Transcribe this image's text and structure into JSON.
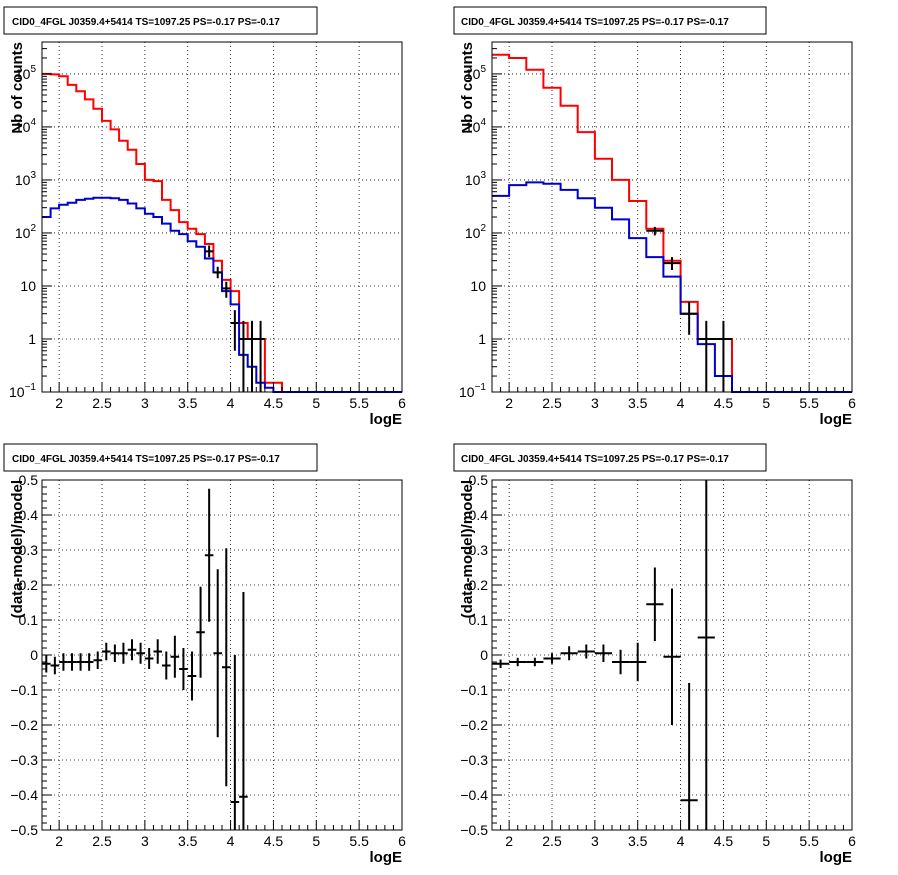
{
  "chart_data": [
    {
      "type": "line",
      "title": "CID0_4FGL J0359.4+5414 TS=1097.25 PS=-0.17 PS=-0.17",
      "xlabel": "logE",
      "ylabel": "Nb of counts",
      "yscale": "log",
      "xlim": [
        1.8,
        6.0
      ],
      "ylim": [
        0.1,
        400000
      ],
      "grid": true,
      "x_tick_labels": [
        "2",
        "2.5",
        "3",
        "3.5",
        "4",
        "4.5",
        "5",
        "5.5",
        "6"
      ],
      "y_tick_labels": [
        {
          "v": 0.1,
          "base": "10",
          "exp": "−1"
        },
        {
          "v": 1,
          "base": "1",
          "exp": ""
        },
        {
          "v": 10,
          "base": "10",
          "exp": ""
        },
        {
          "v": 100,
          "base": "10",
          "exp": "2"
        },
        {
          "v": 1000,
          "base": "10",
          "exp": "3"
        },
        {
          "v": 10000,
          "base": "10",
          "exp": "4"
        },
        {
          "v": 100000,
          "base": "10",
          "exp": "5"
        }
      ],
      "bin_edges": [
        1.8,
        1.9,
        2.0,
        2.1,
        2.2,
        2.3,
        2.4,
        2.5,
        2.6,
        2.7,
        2.8,
        2.9,
        3.0,
        3.1,
        3.2,
        3.3,
        3.4,
        3.5,
        3.6,
        3.7,
        3.8,
        3.9,
        4.0,
        4.1,
        4.2,
        4.3,
        4.4,
        4.5,
        4.6,
        4.7,
        4.8,
        4.9,
        5.0,
        5.1,
        5.2,
        5.3,
        5.4,
        5.5,
        5.6,
        5.7,
        5.8,
        5.9,
        6.0
      ],
      "series": [
        {
          "color": "#ff0000",
          "style": "step",
          "values": [
            100000,
            98000,
            90000,
            62000,
            47000,
            33000,
            22000,
            13000,
            9000,
            5500,
            3700,
            2000,
            1000,
            950,
            420,
            270,
            160,
            120,
            95,
            62,
            30,
            13,
            8,
            2.0,
            1.0,
            1.0,
            0.15,
            0.15,
            0.1,
            0.1,
            0.1,
            0.1,
            0.1,
            0.1,
            0.1,
            0.1,
            0.1,
            0.1,
            0.1,
            0.1,
            0.1,
            0.1
          ]
        },
        {
          "color": "#0000cc",
          "style": "step",
          "values": [
            200,
            290,
            340,
            370,
            420,
            440,
            460,
            460,
            450,
            420,
            360,
            290,
            230,
            200,
            150,
            110,
            95,
            70,
            55,
            33,
            18,
            8,
            4.5,
            0.5,
            0.3,
            0.15,
            0.12,
            0.1,
            0.1,
            0.1,
            0.1,
            0.1,
            0.1,
            0.1,
            0.1,
            0.1,
            0.1,
            0.1,
            0.1,
            0.1,
            0.1,
            0.1
          ]
        }
      ],
      "data_points": [
        {
          "x": 3.75,
          "y": 45,
          "ylo": 35,
          "yhi": 58,
          "xerr": 0.05
        },
        {
          "x": 3.85,
          "y": 18,
          "ylo": 14,
          "yhi": 23,
          "xerr": 0.05
        },
        {
          "x": 3.95,
          "y": 9,
          "ylo": 6,
          "yhi": 12,
          "xerr": 0.05
        },
        {
          "x": 4.05,
          "y": 2,
          "ylo": 0.6,
          "yhi": 3.5,
          "xerr": 0.05
        },
        {
          "x": 4.15,
          "y": 1,
          "ylo": 0.1,
          "yhi": 2.2,
          "xerr": 0.05
        },
        {
          "x": 4.25,
          "y": 1,
          "ylo": 0.1,
          "yhi": 2.2,
          "xerr": 0.05
        },
        {
          "x": 4.35,
          "y": 1,
          "ylo": 0.1,
          "yhi": 2.2,
          "xerr": 0.05
        }
      ]
    },
    {
      "type": "line",
      "title": "CID0_4FGL J0359.4+5414 TS=1097.25 PS=-0.17 PS=-0.17",
      "xlabel": "logE",
      "ylabel": "Nb of counts",
      "yscale": "log",
      "xlim": [
        1.8,
        6.0
      ],
      "ylim": [
        0.1,
        400000
      ],
      "grid": true,
      "x_tick_labels": [
        "2",
        "2.5",
        "3",
        "3.5",
        "4",
        "4.5",
        "5",
        "5.5",
        "6"
      ],
      "y_tick_labels": [
        {
          "v": 0.1,
          "base": "10",
          "exp": "−1"
        },
        {
          "v": 1,
          "base": "1",
          "exp": ""
        },
        {
          "v": 10,
          "base": "10",
          "exp": ""
        },
        {
          "v": 100,
          "base": "10",
          "exp": "2"
        },
        {
          "v": 1000,
          "base": "10",
          "exp": "3"
        },
        {
          "v": 10000,
          "base": "10",
          "exp": "4"
        },
        {
          "v": 100000,
          "base": "10",
          "exp": "5"
        }
      ],
      "bin_edges": [
        1.8,
        2.0,
        2.2,
        2.4,
        2.6,
        2.8,
        3.0,
        3.2,
        3.4,
        3.6,
        3.8,
        4.0,
        4.2,
        4.4,
        4.6,
        4.8,
        5.0,
        5.2,
        5.4,
        5.6,
        5.8,
        6.0
      ],
      "series": [
        {
          "color": "#ff0000",
          "style": "step",
          "values": [
            230000,
            200000,
            120000,
            55000,
            25000,
            8000,
            2500,
            1000,
            400,
            120,
            30,
            5,
            1.0,
            1.0,
            0.1,
            0.1,
            0.1,
            0.1,
            0.1,
            0.1,
            0.1
          ]
        },
        {
          "color": "#0000cc",
          "style": "step",
          "values": [
            500,
            800,
            900,
            850,
            650,
            450,
            300,
            180,
            80,
            35,
            15,
            3,
            0.8,
            0.2,
            0.1,
            0.1,
            0.1,
            0.1,
            0.1,
            0.1,
            0.1
          ]
        }
      ],
      "data_points": [
        {
          "x": 3.7,
          "y": 110,
          "ylo": 90,
          "yhi": 130,
          "xerr": 0.1
        },
        {
          "x": 3.9,
          "y": 27,
          "ylo": 20,
          "yhi": 35,
          "xerr": 0.1
        },
        {
          "x": 4.1,
          "y": 3,
          "ylo": 1.2,
          "yhi": 5,
          "xerr": 0.1
        },
        {
          "x": 4.3,
          "y": 1,
          "ylo": 0.1,
          "yhi": 2.2,
          "xerr": 0.1
        },
        {
          "x": 4.5,
          "y": 1,
          "ylo": 0.1,
          "yhi": 2.2,
          "xerr": 0.1
        }
      ]
    },
    {
      "type": "scatter",
      "title": "CID0_4FGL J0359.4+5414 TS=1097.25 PS=-0.17 PS=-0.17",
      "xlabel": "logE",
      "ylabel": "(data-model)/model",
      "xlim": [
        1.8,
        6.0
      ],
      "ylim": [
        -0.5,
        0.5
      ],
      "grid": true,
      "x_tick_labels": [
        "2",
        "2.5",
        "3",
        "3.5",
        "4",
        "4.5",
        "5",
        "5.5",
        "6"
      ],
      "y_tick_labels": [
        "−0.5",
        "−0.4",
        "−0.3",
        "−0.2",
        "−0.1",
        "0",
        "0.1",
        "0.2",
        "0.3",
        "0.4",
        "0.5"
      ],
      "y_tick_values": [
        -0.5,
        -0.4,
        -0.3,
        -0.2,
        -0.1,
        0,
        0.1,
        0.2,
        0.3,
        0.4,
        0.5
      ],
      "points": [
        {
          "x": 1.85,
          "y": -0.025,
          "err": 0.025,
          "xerr": 0.05
        },
        {
          "x": 1.95,
          "y": -0.03,
          "err": 0.025,
          "xerr": 0.05
        },
        {
          "x": 2.05,
          "y": -0.02,
          "err": 0.025,
          "xerr": 0.05
        },
        {
          "x": 2.15,
          "y": -0.02,
          "err": 0.025,
          "xerr": 0.05
        },
        {
          "x": 2.25,
          "y": -0.02,
          "err": 0.025,
          "xerr": 0.05
        },
        {
          "x": 2.35,
          "y": -0.02,
          "err": 0.025,
          "xerr": 0.05
        },
        {
          "x": 2.45,
          "y": -0.015,
          "err": 0.025,
          "xerr": 0.05
        },
        {
          "x": 2.55,
          "y": 0.01,
          "err": 0.025,
          "xerr": 0.05
        },
        {
          "x": 2.65,
          "y": 0.005,
          "err": 0.025,
          "xerr": 0.05
        },
        {
          "x": 2.75,
          "y": 0.005,
          "err": 0.03,
          "xerr": 0.05
        },
        {
          "x": 2.85,
          "y": 0.015,
          "err": 0.03,
          "xerr": 0.05
        },
        {
          "x": 2.95,
          "y": 0.005,
          "err": 0.03,
          "xerr": 0.05
        },
        {
          "x": 3.05,
          "y": -0.01,
          "err": 0.03,
          "xerr": 0.05
        },
        {
          "x": 3.15,
          "y": 0.01,
          "err": 0.035,
          "xerr": 0.05
        },
        {
          "x": 3.25,
          "y": -0.03,
          "err": 0.04,
          "xerr": 0.05
        },
        {
          "x": 3.35,
          "y": -0.005,
          "err": 0.06,
          "xerr": 0.05
        },
        {
          "x": 3.45,
          "y": -0.04,
          "err": 0.06,
          "xerr": 0.05
        },
        {
          "x": 3.55,
          "y": -0.06,
          "err": 0.07,
          "xerr": 0.05
        },
        {
          "x": 3.65,
          "y": 0.065,
          "err": 0.13,
          "xerr": 0.05
        },
        {
          "x": 3.75,
          "y": 0.285,
          "err": 0.19,
          "xerr": 0.05
        },
        {
          "x": 3.85,
          "y": 0.005,
          "err": 0.24,
          "xerr": 0.05
        },
        {
          "x": 3.95,
          "y": -0.035,
          "err": 0.34,
          "xerr": 0.05
        },
        {
          "x": 4.05,
          "y": -0.42,
          "err": 0.42,
          "xerr": 0.05
        },
        {
          "x": 4.15,
          "y": -0.405,
          "err": 0.585,
          "xerr": 0.05
        }
      ]
    },
    {
      "type": "scatter",
      "title": "CID0_4FGL J0359.4+5414 TS=1097.25 PS=-0.17 PS=-0.17",
      "xlabel": "logE",
      "ylabel": "(data-model)/model",
      "xlim": [
        1.8,
        6.0
      ],
      "ylim": [
        -0.5,
        0.5
      ],
      "grid": true,
      "x_tick_labels": [
        "2",
        "2.5",
        "3",
        "3.5",
        "4",
        "4.5",
        "5",
        "5.5",
        "6"
      ],
      "y_tick_labels": [
        "−0.5",
        "−0.4",
        "−0.3",
        "−0.2",
        "−0.1",
        "0",
        "0.1",
        "0.2",
        "0.3",
        "0.4",
        "0.5"
      ],
      "y_tick_values": [
        -0.5,
        -0.4,
        -0.3,
        -0.2,
        -0.1,
        0,
        0.1,
        0.2,
        0.3,
        0.4,
        0.5
      ],
      "points": [
        {
          "x": 1.9,
          "y": -0.025,
          "err": 0.012,
          "xerr": 0.1
        },
        {
          "x": 2.1,
          "y": -0.02,
          "err": 0.012,
          "xerr": 0.1
        },
        {
          "x": 2.3,
          "y": -0.02,
          "err": 0.012,
          "xerr": 0.1
        },
        {
          "x": 2.5,
          "y": -0.01,
          "err": 0.015,
          "xerr": 0.1
        },
        {
          "x": 2.7,
          "y": 0.005,
          "err": 0.02,
          "xerr": 0.1
        },
        {
          "x": 2.9,
          "y": 0.01,
          "err": 0.02,
          "xerr": 0.1
        },
        {
          "x": 3.1,
          "y": 0.005,
          "err": 0.025,
          "xerr": 0.1
        },
        {
          "x": 3.3,
          "y": -0.02,
          "err": 0.035,
          "xerr": 0.1
        },
        {
          "x": 3.5,
          "y": -0.02,
          "err": 0.055,
          "xerr": 0.1
        },
        {
          "x": 3.7,
          "y": 0.145,
          "err": 0.105,
          "xerr": 0.1
        },
        {
          "x": 3.9,
          "y": -0.005,
          "err": 0.195,
          "xerr": 0.1
        },
        {
          "x": 4.1,
          "y": -0.415,
          "err": 0.335,
          "xerr": 0.1
        },
        {
          "x": 4.3,
          "y": 0.05,
          "err": 0.55,
          "xerr": 0.1
        }
      ]
    }
  ]
}
